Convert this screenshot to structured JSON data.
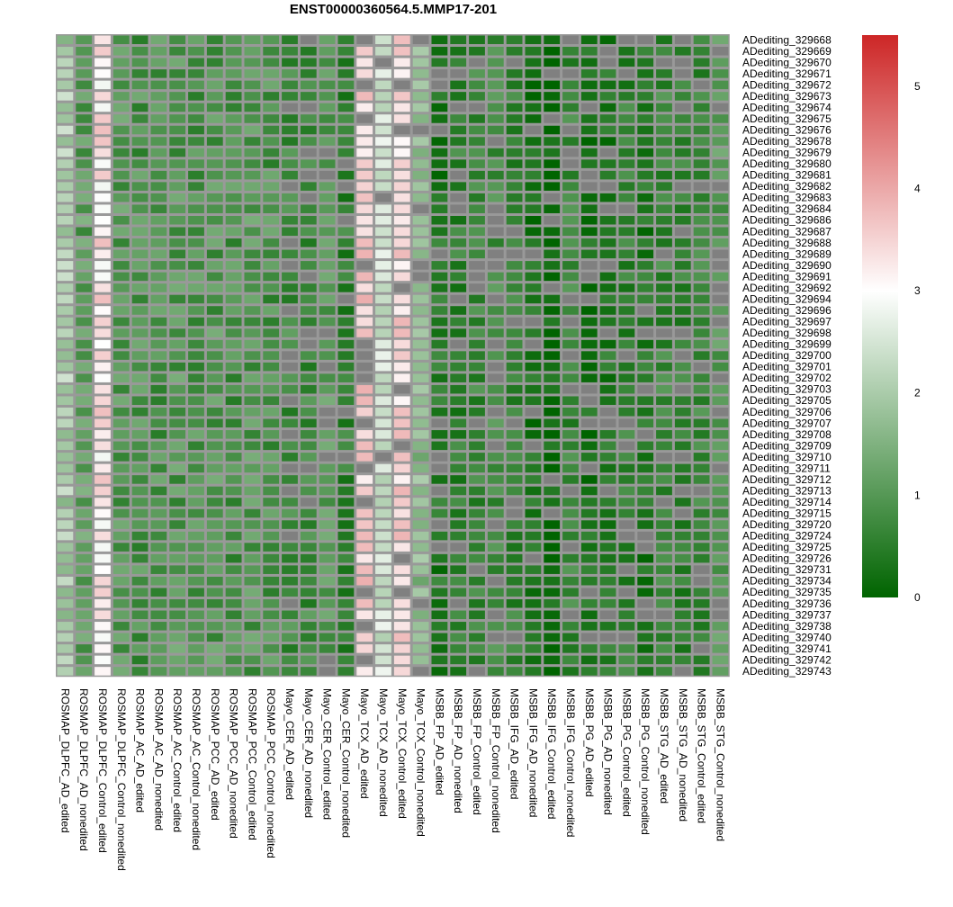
{
  "chart_data": {
    "type": "heatmap",
    "title": "ENST00000360564.5.MMP17-201",
    "columns": [
      "ROSMAP_DLPFC_AD_edited",
      "ROSMAP_DLPFC_AD_nonedited",
      "ROSMAP_DLPFC_Control_edited",
      "ROSMAP_DLPFC_Control_nonedited",
      "ROSMAP_AC_AD_edited",
      "ROSMAP_AC_AD_nonedited",
      "ROSMAP_AC_Control_edited",
      "ROSMAP_AC_Control_nonedited",
      "ROSMAP_PCC_AD_edited",
      "ROSMAP_PCC_AD_nonedited",
      "ROSMAP_PCC_Control_edited",
      "ROSMAP_PCC_Control_nonedited",
      "Mayo_CER_AD_edited",
      "Mayo_CER_AD_nonedited",
      "Mayo_CER_Control_edited",
      "Mayo_CER_Control_nonedited",
      "Mayo_TCX_AD_edited",
      "Mayo_TCX_AD_nonedited",
      "Mayo_TCX_Control_edited",
      "Mayo_TCX_Control_nonedited",
      "MSBB_FP_AD_edited",
      "MSBB_FP_AD_nonedited",
      "MSBB_FP_Control_edited",
      "MSBB_FP_Control_nonedited",
      "MSBB_IFG_AD_edited",
      "MSBB_IFG_AD_nonedited",
      "MSBB_IFG_Control_edited",
      "MSBB_IFG_Control_nonedited",
      "MSBB_PG_AD_edited",
      "MSBB_PG_AD_nonedited",
      "MSBB_PG_Control_edited",
      "MSBB_PG_Control_nonedited",
      "MSBB_STG_AD_edited",
      "MSBB_STG_AD_nonedited",
      "MSBB_STG_Control_edited",
      "MSBB_STG_Control_nonedited"
    ],
    "rows": [
      "ADediting_329668",
      "ADediting_329669",
      "ADediting_329670",
      "ADediting_329671",
      "ADediting_329672",
      "ADediting_329673",
      "ADediting_329674",
      "ADediting_329675",
      "ADediting_329676",
      "ADediting_329678",
      "ADediting_329679",
      "ADediting_329680",
      "ADediting_329681",
      "ADediting_329682",
      "ADediting_329683",
      "ADediting_329684",
      "ADediting_329686",
      "ADediting_329687",
      "ADediting_329688",
      "ADediting_329689",
      "ADediting_329690",
      "ADediting_329691",
      "ADediting_329692",
      "ADediting_329694",
      "ADediting_329696",
      "ADediting_329697",
      "ADediting_329698",
      "ADediting_329699",
      "ADediting_329700",
      "ADediting_329701",
      "ADediting_329702",
      "ADediting_329703",
      "ADediting_329705",
      "ADediting_329706",
      "ADediting_329707",
      "ADediting_329708",
      "ADediting_329709",
      "ADediting_329710",
      "ADediting_329711",
      "ADediting_329712",
      "ADediting_329713",
      "ADediting_329714",
      "ADediting_329715",
      "ADediting_329720",
      "ADediting_329724",
      "ADediting_329725",
      "ADediting_329726",
      "ADediting_329731",
      "ADediting_329734",
      "ADediting_329735",
      "ADediting_329736",
      "ADediting_329737",
      "ADediting_329738",
      "ADediting_329740",
      "ADediting_329741",
      "ADediting_329742",
      "ADediting_329743"
    ],
    "column_base_values": [
      2.0,
      1.1,
      3.3,
      1.0,
      0.9,
      0.9,
      1.0,
      0.9,
      1.0,
      0.9,
      1.0,
      0.9,
      0.7,
      0.7,
      1.0,
      0.5,
      3.5,
      2.4,
      3.4,
      1.6,
      0.3,
      0.5,
      0.6,
      0.7,
      0.5,
      0.2,
      0.0,
      0.6,
      0.2,
      0.3,
      0.5,
      0.3,
      0.6,
      0.5,
      0.6,
      1.0
    ],
    "missing_value_color": "#808080",
    "color_scale": {
      "min": 0,
      "mid": 3,
      "max": 5.5,
      "low": "#006400",
      "mid_color": "#ffffff",
      "high": "#cd2626"
    },
    "legend_ticks": [
      0,
      1,
      2,
      3,
      4,
      5
    ],
    "border_color": "#999999"
  }
}
